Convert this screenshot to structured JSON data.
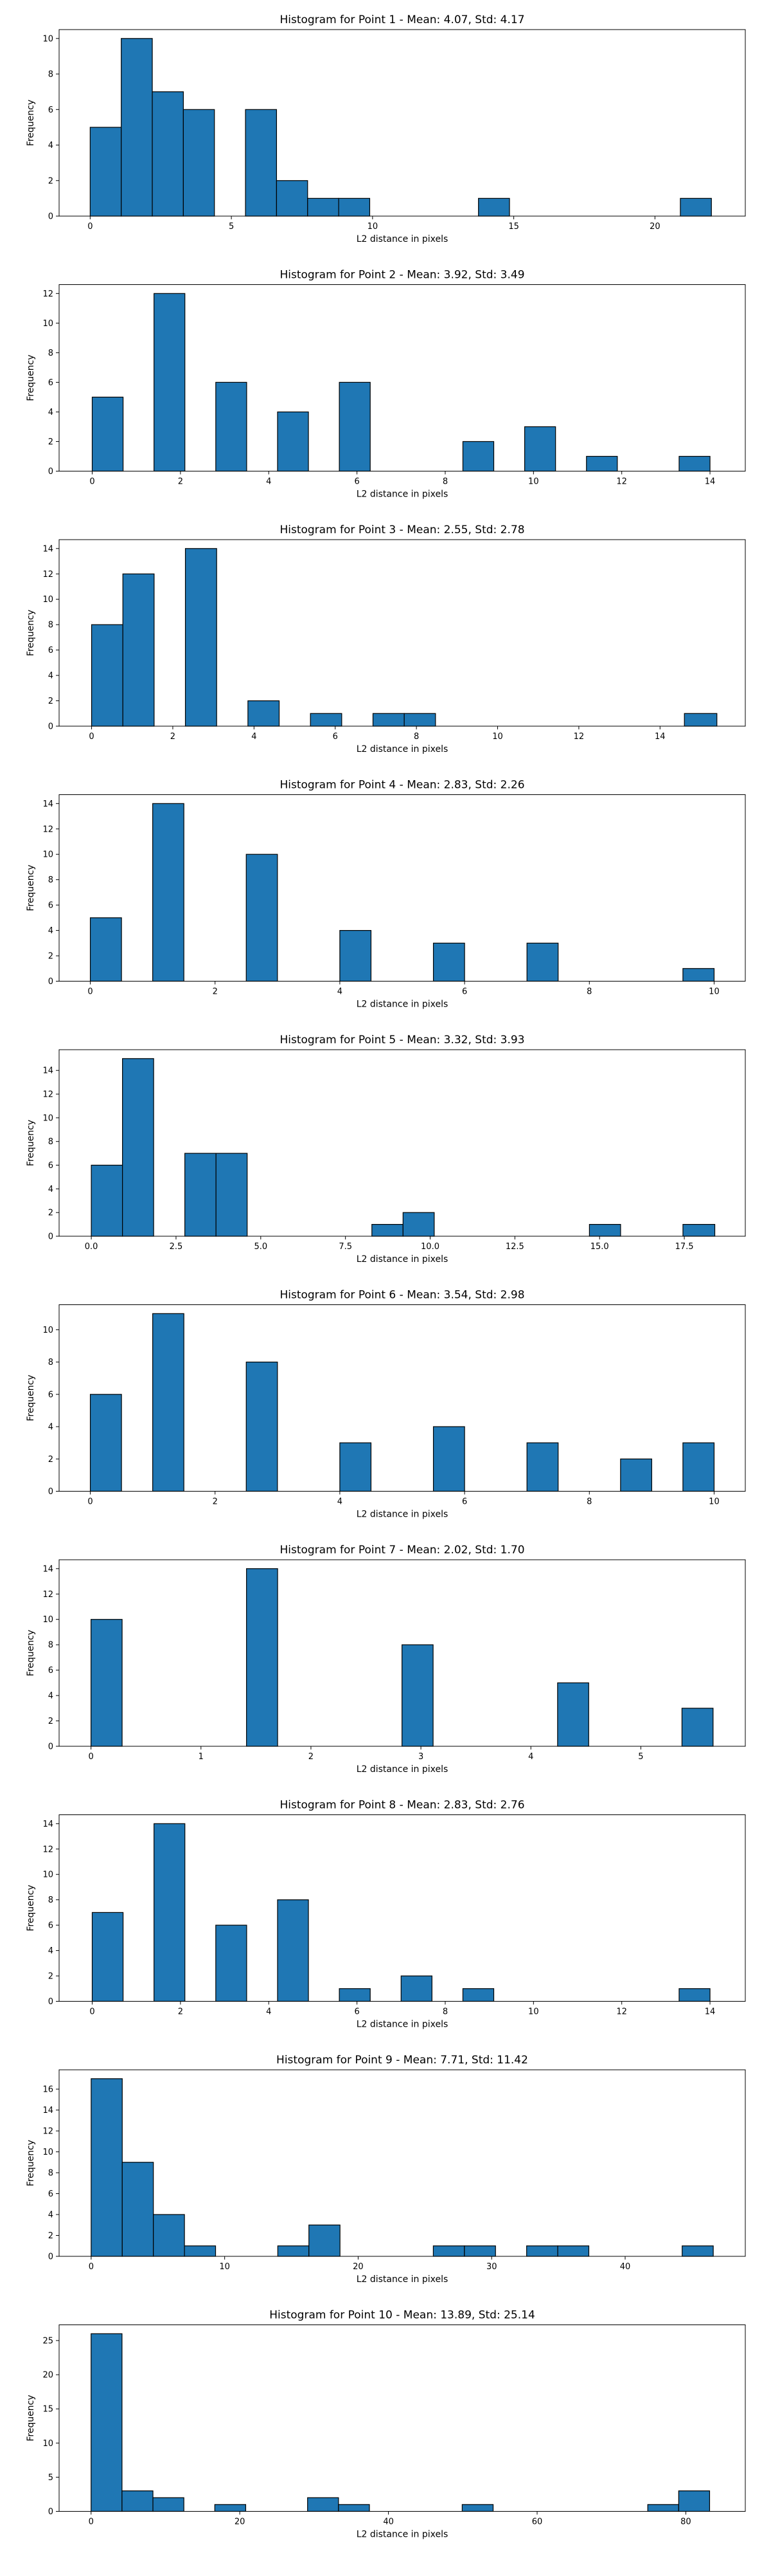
{
  "chart_data": [
    {
      "type": "bar",
      "title": "Histogram for Point 1 - Mean: 4.07, Std: 4.17",
      "xlabel": "L2 distance in pixels",
      "ylabel": "Frequency",
      "xlim": [
        -1.1,
        23.2
      ],
      "ylim": [
        0,
        10.5
      ],
      "xticks": [
        0,
        5,
        10,
        15,
        20
      ],
      "yticks": [
        0,
        2,
        4,
        6,
        8,
        10
      ],
      "bins": [
        {
          "x0": 0.0,
          "x1": 1.1,
          "count": 5
        },
        {
          "x0": 1.1,
          "x1": 2.2,
          "count": 10
        },
        {
          "x0": 2.2,
          "x1": 3.3,
          "count": 7
        },
        {
          "x0": 3.3,
          "x1": 4.4,
          "count": 6
        },
        {
          "x0": 5.5,
          "x1": 6.6,
          "count": 6
        },
        {
          "x0": 6.6,
          "x1": 7.7,
          "count": 2
        },
        {
          "x0": 7.7,
          "x1": 8.8,
          "count": 1
        },
        {
          "x0": 8.8,
          "x1": 9.9,
          "count": 1
        },
        {
          "x0": 13.75,
          "x1": 14.85,
          "count": 1
        },
        {
          "x0": 20.9,
          "x1": 22.0,
          "count": 1
        }
      ]
    },
    {
      "type": "bar",
      "title": "Histogram for Point 2 - Mean: 3.92, Std: 3.49",
      "xlabel": "L2 distance in pixels",
      "ylabel": "Frequency",
      "xlim": [
        -0.75,
        14.8
      ],
      "ylim": [
        0,
        12.6
      ],
      "xticks": [
        0,
        2,
        4,
        6,
        8,
        10,
        12,
        14
      ],
      "yticks": [
        0,
        2,
        4,
        6,
        8,
        10,
        12
      ],
      "bins": [
        {
          "x0": 0.0,
          "x1": 0.7,
          "count": 5
        },
        {
          "x0": 1.4,
          "x1": 2.1,
          "count": 12
        },
        {
          "x0": 2.8,
          "x1": 3.5,
          "count": 6
        },
        {
          "x0": 4.2,
          "x1": 4.9,
          "count": 4
        },
        {
          "x0": 5.6,
          "x1": 6.3,
          "count": 6
        },
        {
          "x0": 8.4,
          "x1": 9.1,
          "count": 2
        },
        {
          "x0": 9.8,
          "x1": 10.5,
          "count": 3
        },
        {
          "x0": 11.2,
          "x1": 11.9,
          "count": 1
        },
        {
          "x0": 13.3,
          "x1": 14.0,
          "count": 1
        }
      ]
    },
    {
      "type": "bar",
      "title": "Histogram for Point 3 - Mean: 2.55, Std: 2.78",
      "xlabel": "L2 distance in pixels",
      "ylabel": "Frequency",
      "xlim": [
        -0.8,
        16.1
      ],
      "ylim": [
        0,
        14.7
      ],
      "xticks": [
        0,
        2,
        4,
        6,
        8,
        10,
        12,
        14
      ],
      "yticks": [
        0,
        2,
        4,
        6,
        8,
        10,
        12,
        14
      ],
      "bins": [
        {
          "x0": 0.0,
          "x1": 0.77,
          "count": 8
        },
        {
          "x0": 0.77,
          "x1": 1.54,
          "count": 12
        },
        {
          "x0": 2.31,
          "x1": 3.08,
          "count": 14
        },
        {
          "x0": 3.85,
          "x1": 4.62,
          "count": 2
        },
        {
          "x0": 5.39,
          "x1": 6.16,
          "count": 1
        },
        {
          "x0": 6.93,
          "x1": 7.7,
          "count": 1
        },
        {
          "x0": 7.7,
          "x1": 8.47,
          "count": 1
        },
        {
          "x0": 14.6,
          "x1": 15.4,
          "count": 1
        }
      ]
    },
    {
      "type": "bar",
      "title": "Histogram for Point 4 - Mean: 2.83, Std: 2.26",
      "xlabel": "L2 distance in pixels",
      "ylabel": "Frequency",
      "xlim": [
        -0.5,
        10.5
      ],
      "ylim": [
        0,
        14.7
      ],
      "xticks": [
        0,
        2,
        4,
        6,
        8,
        10
      ],
      "yticks": [
        0,
        2,
        4,
        6,
        8,
        10,
        12,
        14
      ],
      "bins": [
        {
          "x0": 0.0,
          "x1": 0.5,
          "count": 5
        },
        {
          "x0": 1.0,
          "x1": 1.5,
          "count": 14
        },
        {
          "x0": 2.5,
          "x1": 3.0,
          "count": 10
        },
        {
          "x0": 4.0,
          "x1": 4.5,
          "count": 4
        },
        {
          "x0": 5.5,
          "x1": 6.0,
          "count": 3
        },
        {
          "x0": 7.0,
          "x1": 7.5,
          "count": 3
        },
        {
          "x0": 9.5,
          "x1": 10.0,
          "count": 1
        }
      ]
    },
    {
      "type": "bar",
      "title": "Histogram for Point 5 - Mean: 3.32, Std: 3.93",
      "xlabel": "L2 distance in pixels",
      "ylabel": "Frequency",
      "xlim": [
        -0.95,
        19.3
      ],
      "ylim": [
        0,
        15.75
      ],
      "xticks": [
        0.0,
        2.5,
        5.0,
        7.5,
        10.0,
        12.5,
        15.0,
        17.5
      ],
      "xtick_labels": [
        "0.0",
        "2.5",
        "5.0",
        "7.5",
        "10.0",
        "12.5",
        "15.0",
        "17.5"
      ],
      "yticks": [
        0,
        2,
        4,
        6,
        8,
        10,
        12,
        14
      ],
      "bins": [
        {
          "x0": 0.0,
          "x1": 0.92,
          "count": 6
        },
        {
          "x0": 0.92,
          "x1": 1.84,
          "count": 15
        },
        {
          "x0": 2.76,
          "x1": 3.68,
          "count": 7
        },
        {
          "x0": 3.68,
          "x1": 4.6,
          "count": 7
        },
        {
          "x0": 8.28,
          "x1": 9.2,
          "count": 1
        },
        {
          "x0": 9.2,
          "x1": 10.12,
          "count": 2
        },
        {
          "x0": 14.7,
          "x1": 15.62,
          "count": 1
        },
        {
          "x0": 17.46,
          "x1": 18.4,
          "count": 1
        }
      ]
    },
    {
      "type": "bar",
      "title": "Histogram for Point 6 - Mean: 3.54, Std: 2.98",
      "xlabel": "L2 distance in pixels",
      "ylabel": "Frequency",
      "xlim": [
        -0.5,
        10.5
      ],
      "ylim": [
        0,
        11.55
      ],
      "xticks": [
        0,
        2,
        4,
        6,
        8,
        10
      ],
      "yticks": [
        0,
        2,
        4,
        6,
        8,
        10
      ],
      "bins": [
        {
          "x0": 0.0,
          "x1": 0.5,
          "count": 6
        },
        {
          "x0": 1.0,
          "x1": 1.5,
          "count": 11
        },
        {
          "x0": 2.5,
          "x1": 3.0,
          "count": 8
        },
        {
          "x0": 4.0,
          "x1": 4.5,
          "count": 3
        },
        {
          "x0": 5.5,
          "x1": 6.0,
          "count": 4
        },
        {
          "x0": 7.0,
          "x1": 7.5,
          "count": 3
        },
        {
          "x0": 8.5,
          "x1": 9.0,
          "count": 2
        },
        {
          "x0": 9.5,
          "x1": 10.0,
          "count": 3
        }
      ]
    },
    {
      "type": "bar",
      "title": "Histogram for Point 7 - Mean: 2.02, Std: 1.70",
      "xlabel": "L2 distance in pixels",
      "ylabel": "Frequency",
      "xlim": [
        -0.29,
        5.95
      ],
      "ylim": [
        0,
        14.7
      ],
      "xticks": [
        0,
        1,
        2,
        3,
        4,
        5
      ],
      "yticks": [
        0,
        2,
        4,
        6,
        8,
        10,
        12,
        14
      ],
      "bins": [
        {
          "x0": 0.0,
          "x1": 0.283,
          "count": 10
        },
        {
          "x0": 1.414,
          "x1": 1.697,
          "count": 14
        },
        {
          "x0": 2.828,
          "x1": 3.111,
          "count": 8
        },
        {
          "x0": 4.243,
          "x1": 4.526,
          "count": 5
        },
        {
          "x0": 5.374,
          "x1": 5.657,
          "count": 3
        }
      ]
    },
    {
      "type": "bar",
      "title": "Histogram for Point 8 - Mean: 2.83, Std: 2.76",
      "xlabel": "L2 distance in pixels",
      "ylabel": "Frequency",
      "xlim": [
        -0.75,
        14.8
      ],
      "ylim": [
        0,
        14.7
      ],
      "xticks": [
        0,
        2,
        4,
        6,
        8,
        10,
        12,
        14
      ],
      "yticks": [
        0,
        2,
        4,
        6,
        8,
        10,
        12,
        14
      ],
      "bins": [
        {
          "x0": 0.0,
          "x1": 0.7,
          "count": 7
        },
        {
          "x0": 1.4,
          "x1": 2.1,
          "count": 14
        },
        {
          "x0": 2.8,
          "x1": 3.5,
          "count": 6
        },
        {
          "x0": 4.2,
          "x1": 4.9,
          "count": 8
        },
        {
          "x0": 5.6,
          "x1": 6.3,
          "count": 1
        },
        {
          "x0": 7.0,
          "x1": 7.7,
          "count": 2
        },
        {
          "x0": 8.4,
          "x1": 9.1,
          "count": 1
        },
        {
          "x0": 13.3,
          "x1": 14.0,
          "count": 1
        }
      ]
    },
    {
      "type": "bar",
      "title": "Histogram for Point 9 - Mean: 7.71, Std: 11.42",
      "xlabel": "L2 distance in pixels",
      "ylabel": "Frequency",
      "xlim": [
        -2.4,
        49.0
      ],
      "ylim": [
        0,
        17.85
      ],
      "xticks": [
        0,
        10,
        20,
        30,
        40
      ],
      "yticks": [
        0,
        2,
        4,
        6,
        8,
        10,
        12,
        14,
        16
      ],
      "bins": [
        {
          "x0": 0.0,
          "x1": 2.33,
          "count": 17
        },
        {
          "x0": 2.33,
          "x1": 4.66,
          "count": 9
        },
        {
          "x0": 4.66,
          "x1": 6.99,
          "count": 4
        },
        {
          "x0": 6.99,
          "x1": 9.32,
          "count": 1
        },
        {
          "x0": 13.98,
          "x1": 16.31,
          "count": 1
        },
        {
          "x0": 16.31,
          "x1": 18.64,
          "count": 3
        },
        {
          "x0": 25.63,
          "x1": 27.96,
          "count": 1
        },
        {
          "x0": 27.96,
          "x1": 30.29,
          "count": 1
        },
        {
          "x0": 32.62,
          "x1": 34.95,
          "count": 1
        },
        {
          "x0": 34.95,
          "x1": 37.28,
          "count": 1
        },
        {
          "x0": 44.27,
          "x1": 46.6,
          "count": 1
        }
      ]
    },
    {
      "type": "bar",
      "title": "Histogram for Point 10 - Mean: 13.89, Std: 25.14",
      "xlabel": "L2 distance in pixels",
      "ylabel": "Frequency",
      "xlim": [
        -4.3,
        88.0
      ],
      "ylim": [
        0,
        27.3
      ],
      "xticks": [
        0,
        20,
        40,
        60,
        80
      ],
      "yticks": [
        0,
        5,
        10,
        15,
        20,
        25
      ],
      "bins": [
        {
          "x0": 0.0,
          "x1": 4.16,
          "count": 26
        },
        {
          "x0": 4.16,
          "x1": 8.32,
          "count": 3
        },
        {
          "x0": 8.32,
          "x1": 12.48,
          "count": 2
        },
        {
          "x0": 16.64,
          "x1": 20.8,
          "count": 1
        },
        {
          "x0": 29.12,
          "x1": 33.28,
          "count": 2
        },
        {
          "x0": 33.28,
          "x1": 37.44,
          "count": 1
        },
        {
          "x0": 49.92,
          "x1": 54.08,
          "count": 1
        },
        {
          "x0": 74.88,
          "x1": 79.04,
          "count": 1
        },
        {
          "x0": 79.04,
          "x1": 83.2,
          "count": 3
        }
      ]
    }
  ],
  "colors": {
    "bar_fill": "#1f77b4",
    "bar_edge": "#000000",
    "axes": "#000000"
  }
}
